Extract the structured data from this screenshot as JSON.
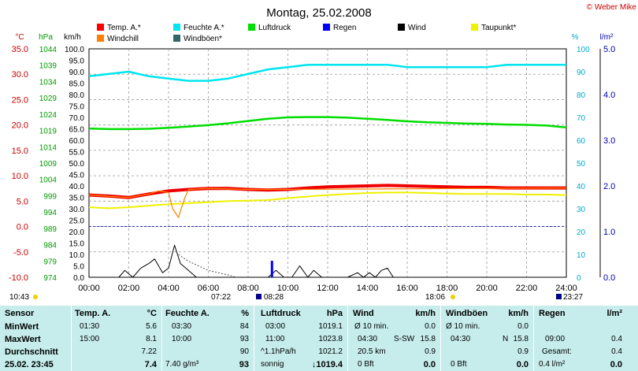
{
  "title": "Montag, 25.02.2008",
  "copyright": "© Weber Mike",
  "legend": [
    {
      "name": "Temp. A.*",
      "color": "#ff0000"
    },
    {
      "name": "Feuchte A.*",
      "color": "#00e5ee"
    },
    {
      "name": "Luftdruck",
      "color": "#00dd00"
    },
    {
      "name": "Regen",
      "color": "#0000ff"
    },
    {
      "name": "Wind",
      "color": "#000000"
    },
    {
      "name": "Taupunkt*",
      "color": "#f0f000"
    },
    {
      "name": "Windchill",
      "color": "#ff7f00"
    },
    {
      "name": "Windböen*",
      "color": "#336666"
    }
  ],
  "axis_units": {
    "temp": "°C",
    "hpa": "hPa",
    "kmh": "km/h",
    "pct": "%",
    "rain": "l/m²"
  },
  "chart_data": {
    "type": "line",
    "x_ticks": [
      "00:00",
      "02:00",
      "04:00",
      "06:00",
      "08:00",
      "10:00",
      "12:00",
      "14:00",
      "16:00",
      "18:00",
      "20:00",
      "22:00",
      "24:00"
    ],
    "x_range": [
      0,
      24
    ],
    "axes": {
      "temp": {
        "range": [
          -10,
          35
        ],
        "ticks": [
          "35.0",
          "30.0",
          "25.0",
          "20.0",
          "15.0",
          "10.0",
          "5.0",
          "0.0",
          "-5.0",
          "-10.0"
        ]
      },
      "hpa": {
        "range": [
          974,
          1044
        ],
        "ticks": [
          "1044",
          "1039",
          "1034",
          "1029",
          "1024",
          "1019",
          "1014",
          "1009",
          "1004",
          "999",
          "994",
          "989",
          "984",
          "979",
          "974"
        ]
      },
      "kmh": {
        "range": [
          0,
          100
        ],
        "ticks": [
          "100.0",
          "95.0",
          "90.0",
          "85.0",
          "80.0",
          "75.0",
          "70.0",
          "65.0",
          "60.0",
          "55.0",
          "50.0",
          "45.0",
          "40.0",
          "35.0",
          "30.0",
          "25.0",
          "20.0",
          "15.0",
          "10.0",
          "5.0",
          "0.0"
        ]
      },
      "pct": {
        "range": [
          0,
          100
        ],
        "ticks": [
          "100",
          "90",
          "80",
          "70",
          "60",
          "50",
          "40",
          "30",
          "20",
          "10",
          "0"
        ]
      },
      "rain": {
        "range": [
          0,
          5
        ],
        "ticks": [
          "5.0",
          "4.0",
          "3.0",
          "2.0",
          "1.0",
          "0.0"
        ]
      }
    },
    "series": [
      {
        "name": "Feuchte A.*",
        "axis": "pct",
        "color": "#00e5ee",
        "width": 2.5,
        "x": [
          0,
          1,
          2,
          3,
          4,
          5,
          6,
          7,
          8,
          9,
          10,
          11,
          12,
          13,
          14,
          15,
          16,
          17,
          18,
          19,
          20,
          21,
          22,
          23,
          24
        ],
        "y": [
          88,
          89,
          90,
          88,
          87,
          86,
          86,
          87,
          89,
          91,
          92,
          93,
          93,
          93,
          93,
          93,
          92,
          92,
          92,
          92,
          92,
          93,
          93,
          93,
          93
        ]
      },
      {
        "name": "Luftdruck",
        "axis": "hpa",
        "color": "#00dd00",
        "width": 2.5,
        "x": [
          0,
          1,
          2,
          3,
          4,
          5,
          6,
          7,
          8,
          9,
          10,
          11,
          12,
          13,
          14,
          15,
          16,
          17,
          18,
          19,
          20,
          21,
          22,
          23,
          24
        ],
        "y": [
          1019.6,
          1019.4,
          1019.4,
          1019.5,
          1019.8,
          1020.2,
          1020.6,
          1021.2,
          1021.9,
          1022.6,
          1023.0,
          1023.1,
          1023.1,
          1022.9,
          1022.6,
          1022.2,
          1021.8,
          1021.5,
          1021.3,
          1021.1,
          1021.0,
          1020.8,
          1020.7,
          1020.5,
          1019.9
        ]
      },
      {
        "name": "Temp. A.*",
        "axis": "temp",
        "color": "#ee0000",
        "width": 4,
        "x": [
          0,
          1,
          2,
          3,
          4,
          5,
          6,
          7,
          8,
          9,
          10,
          11,
          12,
          13,
          14,
          15,
          16,
          17,
          18,
          19,
          20,
          21,
          22,
          23,
          24
        ],
        "y": [
          6.2,
          6.0,
          5.7,
          6.4,
          7.0,
          7.3,
          7.5,
          7.5,
          7.3,
          7.2,
          7.3,
          7.6,
          7.8,
          7.9,
          8.0,
          8.1,
          8.0,
          7.9,
          7.8,
          7.7,
          7.7,
          7.6,
          7.6,
          7.6,
          7.6
        ]
      },
      {
        "name": "Taupunkt*",
        "axis": "temp",
        "color": "#f0f000",
        "width": 2,
        "x": [
          0,
          1,
          2,
          3,
          4,
          5,
          6,
          7,
          8,
          9,
          10,
          11,
          12,
          13,
          14,
          15,
          16,
          17,
          18,
          19,
          20,
          21,
          22,
          23,
          24
        ],
        "y": [
          3.8,
          3.6,
          3.8,
          4.1,
          4.4,
          4.6,
          4.8,
          5.0,
          5.1,
          5.2,
          5.6,
          5.9,
          6.2,
          6.4,
          6.6,
          6.7,
          6.7,
          6.6,
          6.5,
          6.4,
          6.4,
          6.4,
          6.3,
          6.3,
          6.2
        ]
      },
      {
        "name": "Windchill",
        "axis": "temp",
        "color": "#ff7f00",
        "width": 1.2,
        "x": [
          0,
          2,
          3,
          3.5,
          4,
          4.2,
          4.5,
          4.8,
          5,
          6,
          8,
          10,
          24
        ],
        "y": [
          6.2,
          5.7,
          6.4,
          7.0,
          6.7,
          3.5,
          1.8,
          5.5,
          7.3,
          7.5,
          7.3,
          7.3,
          7.6
        ]
      },
      {
        "name": "Wind",
        "axis": "kmh",
        "color": "#000000",
        "width": 1,
        "x": [
          0,
          1.5,
          1.8,
          2.2,
          2.6,
          3,
          3.3,
          3.7,
          4,
          4.3,
          4.6,
          5,
          5.4,
          5.8,
          6,
          7,
          8,
          9,
          9.4,
          9.8,
          10.2,
          10.6,
          11,
          11.3,
          11.7,
          12,
          13,
          13.5,
          13.8,
          14.1,
          14.4,
          14.7,
          15,
          15.3,
          16,
          24
        ],
        "y": [
          0,
          0,
          3,
          0,
          4,
          6,
          8,
          2,
          4,
          14,
          6,
          3,
          0,
          0,
          0,
          0,
          0,
          0,
          3,
          0,
          0,
          5,
          0,
          3,
          0,
          0,
          0,
          2,
          0,
          2,
          0,
          3,
          4,
          0,
          0,
          0
        ]
      },
      {
        "name": "Windböen*",
        "axis": "kmh",
        "color": "#555555",
        "width": 1,
        "dashed": true,
        "x": [
          4.5,
          5,
          5.5,
          6,
          6.5,
          7,
          7.4
        ],
        "y": [
          10,
          7,
          5,
          3,
          2,
          1,
          0
        ]
      },
      {
        "name": "Regen",
        "axis": "rain",
        "color": "#0000ff",
        "width": 3,
        "bars": [
          {
            "x": 9.2,
            "y": 0.36
          }
        ]
      }
    ],
    "reference_lines": [
      {
        "axis": "temp",
        "value": 0,
        "color": "#3333aa",
        "dashed": true
      }
    ]
  },
  "timeline": {
    "sunrise": "07:22",
    "moon_rise": "08:28",
    "sunset": "18:06",
    "moon_set": "23:27",
    "left_time": "10:43"
  },
  "stats": {
    "sensor": {
      "header": "Sensor",
      "rows": [
        "MinWert",
        "MaxWert",
        "Durchschnitt",
        "25.02. 23:45"
      ]
    },
    "temp": {
      "header": "Temp. A.",
      "unit": "°C",
      "rows": [
        [
          "01:30",
          "5.6"
        ],
        [
          "15:00",
          "8.1"
        ],
        [
          "",
          "7.22"
        ],
        [
          "",
          "7.4"
        ]
      ]
    },
    "feuchte": {
      "header": "Feuchte A.",
      "unit": "%",
      "rows": [
        [
          "03:30",
          "84"
        ],
        [
          "10:00",
          "93"
        ],
        [
          "",
          "90"
        ],
        [
          "7.40 g/m³",
          "93"
        ]
      ]
    },
    "luftdruck": {
      "header": "Luftdruck",
      "unit": "hPa",
      "rows": [
        [
          "03:00",
          "1019.1"
        ],
        [
          "11:00",
          "1023.8"
        ],
        [
          "^1.1hPa/h",
          "1021.2"
        ],
        [
          "sonnig",
          "↓1019.4"
        ]
      ]
    },
    "wind": {
      "header": "Wind",
      "unit": "km/h",
      "rows": [
        [
          "Ø 10 min.",
          "",
          "0.0"
        ],
        [
          "04:30",
          "S-SW",
          "15.8"
        ],
        [
          "20.5 km",
          "",
          "0.9"
        ],
        [
          "0 Bft",
          "",
          "0.0"
        ]
      ]
    },
    "boeen": {
      "header": "Windböen",
      "unit": "km/h",
      "rows": [
        [
          "Ø 10 min.",
          "",
          "0.0"
        ],
        [
          "04:30",
          "N",
          "15.8"
        ],
        [
          "",
          "",
          "0.9"
        ],
        [
          "0 Bft",
          "",
          "0.0"
        ]
      ]
    },
    "regen": {
      "header": "Regen",
      "unit": "l/m²",
      "rows": [
        [
          "",
          ""
        ],
        [
          "09:00",
          "0.4"
        ],
        [
          "Gesamt:",
          "0.4"
        ],
        [
          "0.4 l/m²",
          "0.0"
        ]
      ]
    }
  }
}
